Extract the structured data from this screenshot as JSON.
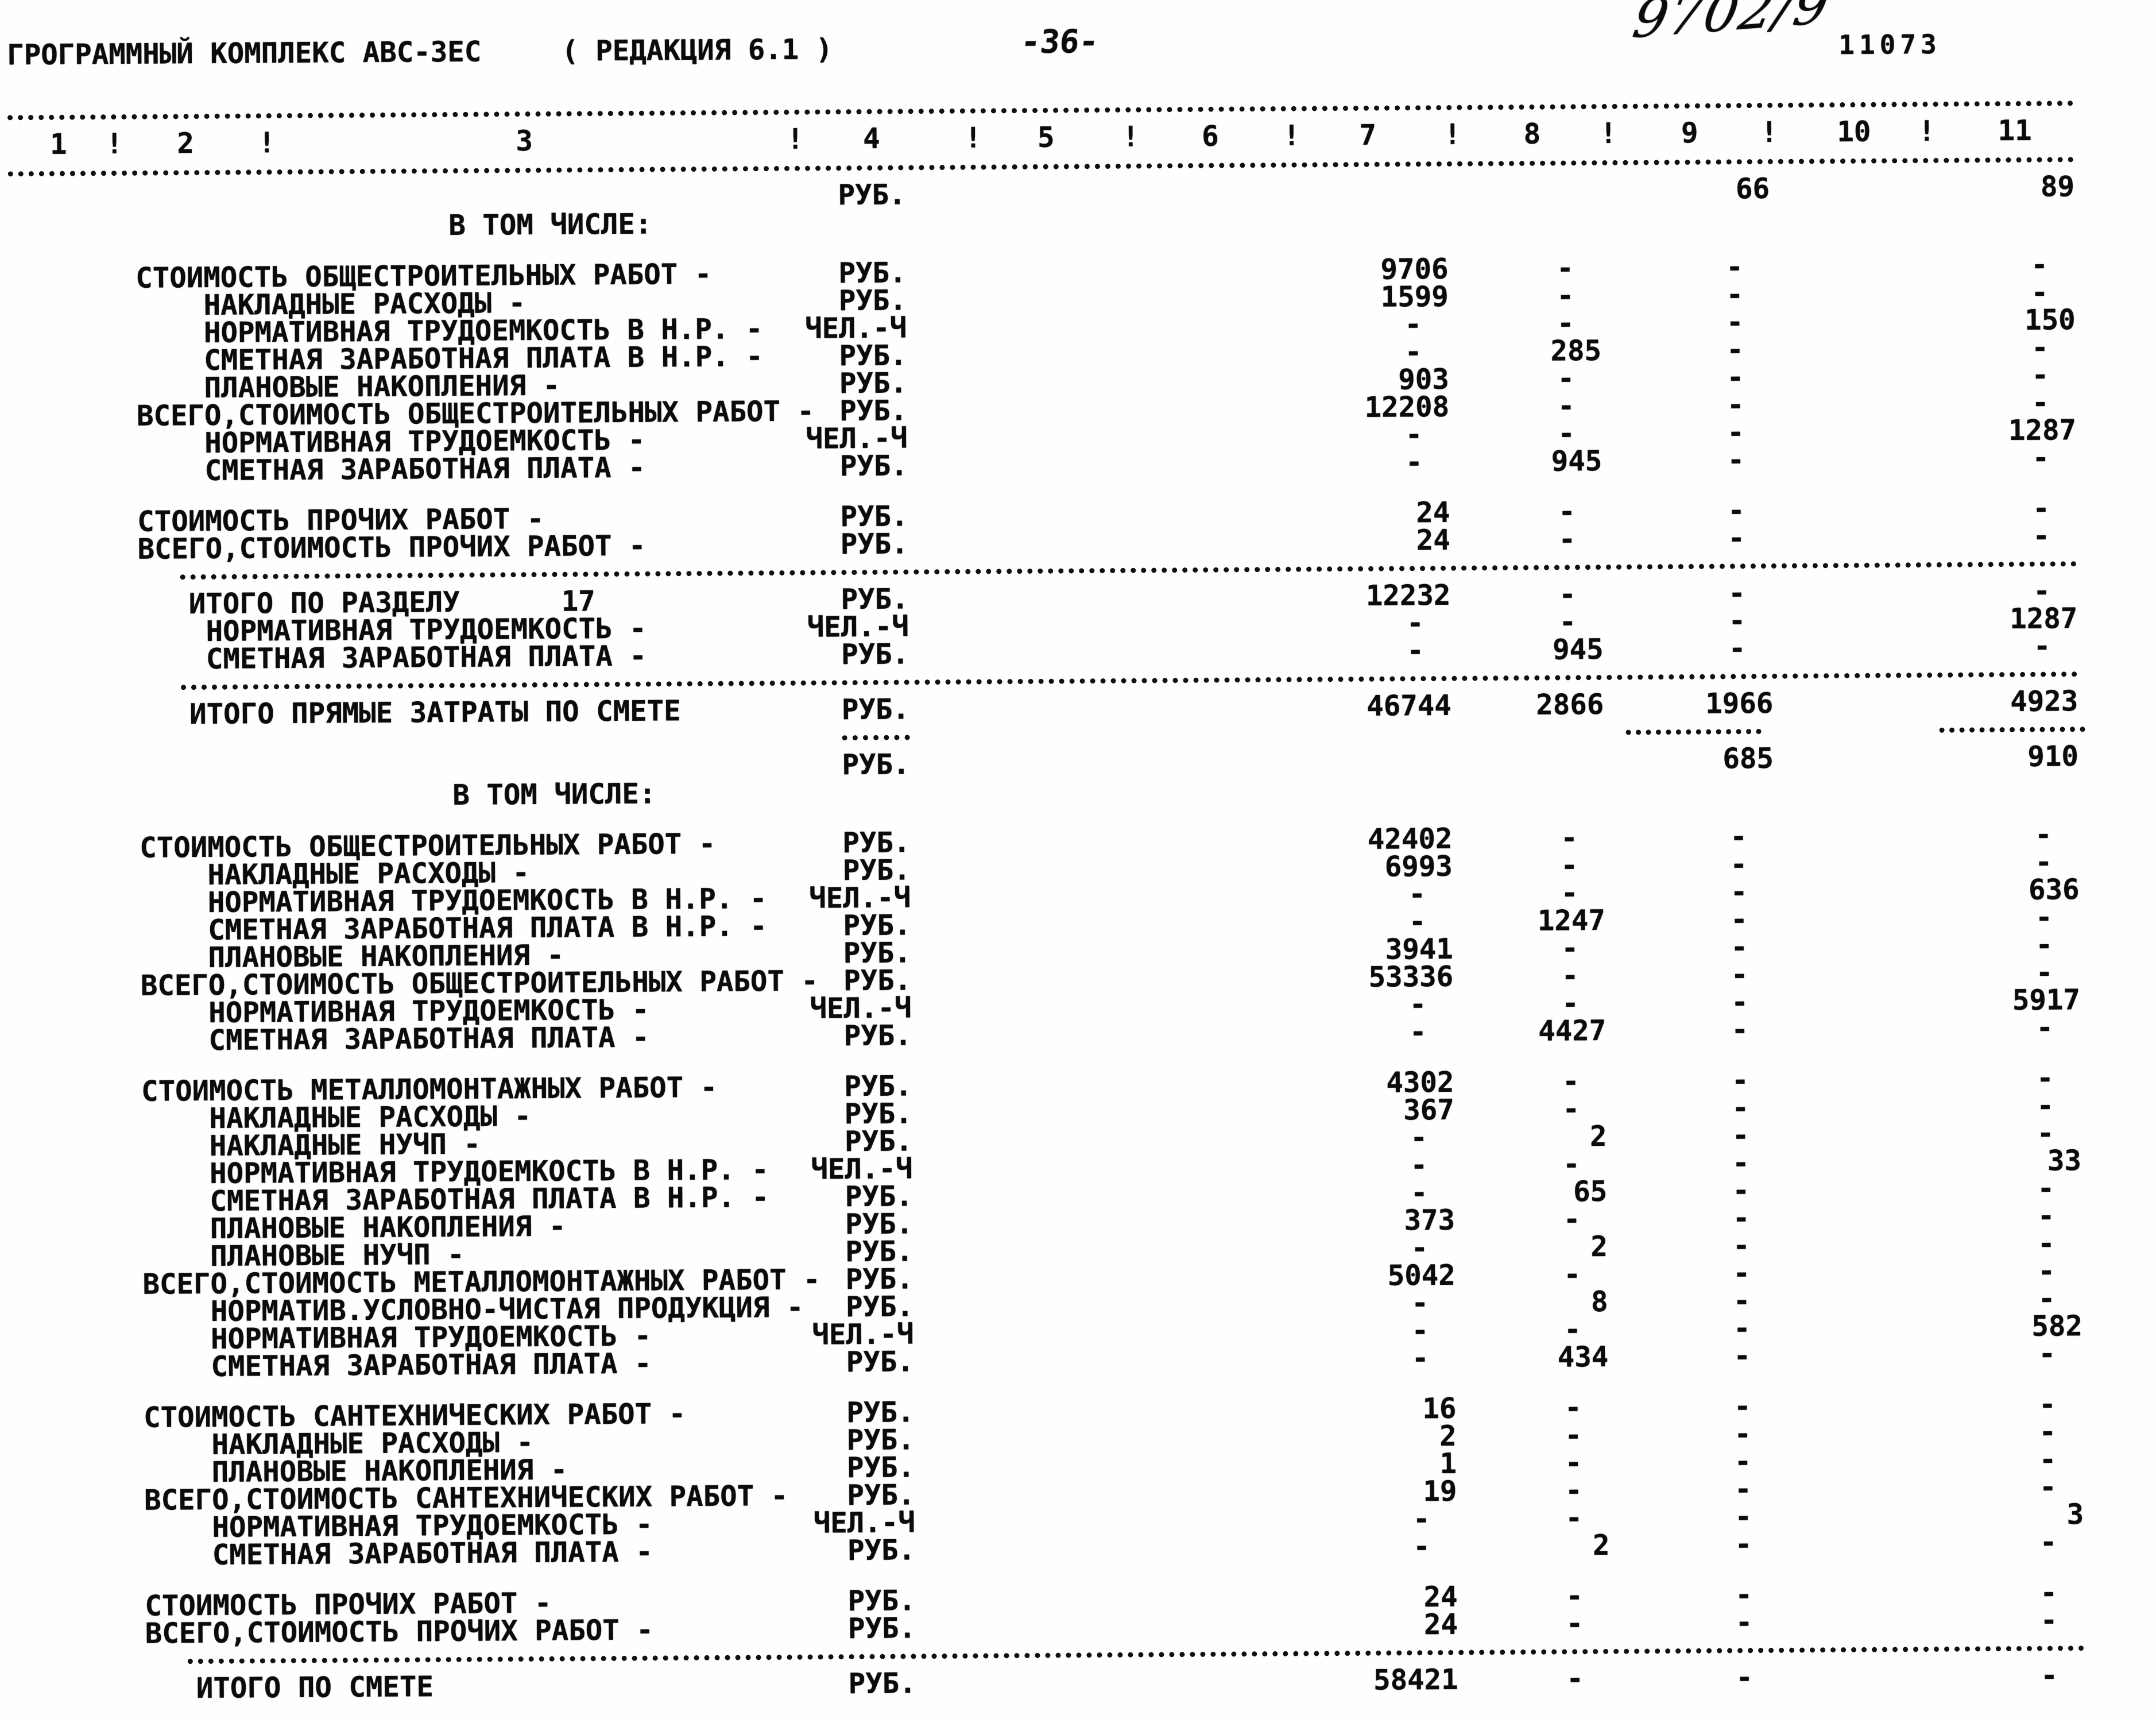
{
  "header": {
    "title": "ГРОГРАММНЫЙ КОМПЛЕКС АВС-3ЕС",
    "edition": "( РЕДАКЦИЯ 6.1 )",
    "page_number": "-36-",
    "handwritten_note": "9702/9",
    "stamp_number": "11073"
  },
  "table": {
    "column_numbers": [
      "1",
      "2",
      "3",
      "4",
      "5",
      "6",
      "7",
      "8",
      "9",
      "10",
      "11"
    ],
    "separator_char": "!",
    "units": {
      "rub": "РУБ.",
      "chel": "ЧЕЛ.-Ч"
    },
    "rows": [
      {
        "t": "v",
        "l": "",
        "ind": 0,
        "u": "РУБ.",
        "c7": "",
        "c8": "",
        "c9": "66",
        "c11": "89"
      },
      {
        "t": "s",
        "text": "В ТОМ ЧИСЛЕ:"
      },
      {
        "t": "b"
      },
      {
        "t": "v",
        "l": "СТОИМОСТЬ ОБЩЕСТРОИТЕЛЬНЫХ РАБОТ -",
        "ind": 0,
        "u": "РУБ.",
        "c7": "9706",
        "c8": "-",
        "c9": "-",
        "c11": "-"
      },
      {
        "t": "v",
        "l": "НАКЛАДНЫЕ РАСХОДЫ -",
        "ind": 1,
        "u": "РУБ.",
        "c7": "1599",
        "c8": "-",
        "c9": "-",
        "c11": "-"
      },
      {
        "t": "v",
        "l": "НОРМАТИВНАЯ ТРУДОЕМКОСТЬ В Н.Р. -",
        "ind": 1,
        "u": "ЧЕЛ.-Ч",
        "c7": "-",
        "c8": "-",
        "c9": "-",
        "c11": "150"
      },
      {
        "t": "v",
        "l": "СМЕТНАЯ ЗАРАБОТНАЯ ПЛАТА В Н.Р. -",
        "ind": 1,
        "u": "РУБ.",
        "c7": "-",
        "c8": "285",
        "c9": "-",
        "c11": "-"
      },
      {
        "t": "v",
        "l": "ПЛАНОВЫЕ НАКОПЛЕНИЯ -",
        "ind": 1,
        "u": "РУБ.",
        "c7": "903",
        "c8": "-",
        "c9": "-",
        "c11": "-"
      },
      {
        "t": "v",
        "l": "ВСЕГО,СТОИМОСТЬ ОБЩЕСТРОИТЕЛЬНЫХ РАБОТ -",
        "ind": 0,
        "u": "РУБ.",
        "c7": "12208",
        "c8": "-",
        "c9": "-",
        "c11": "-"
      },
      {
        "t": "v",
        "l": "НОРМАТИВНАЯ ТРУДОЕМКОСТЬ -",
        "ind": 1,
        "u": "ЧЕЛ.-Ч",
        "c7": "-",
        "c8": "-",
        "c9": "-",
        "c11": "1287"
      },
      {
        "t": "v",
        "l": "СМЕТНАЯ ЗАРАБОТНАЯ ПЛАТА -",
        "ind": 1,
        "u": "РУБ.",
        "c7": "-",
        "c8": "945",
        "c9": "-",
        "c11": "-"
      },
      {
        "t": "b"
      },
      {
        "t": "v",
        "l": "СТОИМОСТЬ ПРОЧИХ РАБОТ -",
        "ind": 0,
        "u": "РУБ.",
        "c7": "24",
        "c8": "-",
        "c9": "-",
        "c11": "-"
      },
      {
        "t": "v",
        "l": "ВСЕГО,СТОИМОСТЬ ПРОЧИХ РАБОТ -",
        "ind": 0,
        "u": "РУБ.",
        "c7": "24",
        "c8": "-",
        "c9": "-",
        "c11": "-"
      },
      {
        "t": "si"
      },
      {
        "t": "v",
        "l": "ИТОГО ПО РАЗДЕЛУ      17",
        "ind": 2,
        "u": "РУБ.",
        "c7": "12232",
        "c8": "-",
        "c9": "-",
        "c11": "-"
      },
      {
        "t": "v",
        "l": "НОРМАТИВНАЯ ТРУДОЕМКОСТЬ -",
        "ind": 1,
        "u": "ЧЕЛ.-Ч",
        "c7": "-",
        "c8": "-",
        "c9": "-",
        "c11": "1287"
      },
      {
        "t": "v",
        "l": "СМЕТНАЯ ЗАРАБОТНАЯ ПЛАТА -",
        "ind": 1,
        "u": "РУБ.",
        "c7": "-",
        "c8": "945",
        "c9": "-",
        "c11": "-"
      },
      {
        "t": "si"
      },
      {
        "t": "v",
        "l": "ИТОГО ПРЯМЫЕ ЗАТРАТЫ ПО СМЕТЕ",
        "ind": 2,
        "u": "РУБ.",
        "c7": "46744",
        "c8": "2866",
        "c9": "1966",
        "c11": "4923"
      },
      {
        "t": "sc"
      },
      {
        "t": "v",
        "l": "",
        "ind": 0,
        "u": "РУБ.",
        "c7": "",
        "c8": "",
        "c9": "685",
        "c11": "910"
      },
      {
        "t": "s",
        "text": "В ТОМ ЧИСЛЕ:"
      },
      {
        "t": "b"
      },
      {
        "t": "v",
        "l": "СТОИМОСТЬ ОБЩЕСТРОИТЕЛЬНЫХ РАБОТ -",
        "ind": 0,
        "u": "РУБ.",
        "c7": "42402",
        "c8": "-",
        "c9": "-",
        "c11": "-"
      },
      {
        "t": "v",
        "l": "НАКЛАДНЫЕ РАСХОДЫ -",
        "ind": 1,
        "u": "РУБ.",
        "c7": "6993",
        "c8": "-",
        "c9": "-",
        "c11": "-"
      },
      {
        "t": "v",
        "l": "НОРМАТИВНАЯ ТРУДОЕМКОСТЬ В Н.Р. -",
        "ind": 1,
        "u": "ЧЕЛ.-Ч",
        "c7": "-",
        "c8": "-",
        "c9": "-",
        "c11": "636"
      },
      {
        "t": "v",
        "l": "СМЕТНАЯ ЗАРАБОТНАЯ ПЛАТА В Н.Р. -",
        "ind": 1,
        "u": "РУБ.",
        "c7": "-",
        "c8": "1247",
        "c9": "-",
        "c11": "-"
      },
      {
        "t": "v",
        "l": "ПЛАНОВЫЕ НАКОПЛЕНИЯ -",
        "ind": 1,
        "u": "РУБ.",
        "c7": "3941",
        "c8": "-",
        "c9": "-",
        "c11": "-"
      },
      {
        "t": "v",
        "l": "ВСЕГО,СТОИМОСТЬ ОБЩЕСТРОИТЕЛЬНЫХ РАБОТ -",
        "ind": 0,
        "u": "РУБ.",
        "c7": "53336",
        "c8": "-",
        "c9": "-",
        "c11": "-"
      },
      {
        "t": "v",
        "l": "НОРМАТИВНАЯ ТРУДОЕМКОСТЬ -",
        "ind": 1,
        "u": "ЧЕЛ.-Ч",
        "c7": "-",
        "c8": "-",
        "c9": "-",
        "c11": "5917"
      },
      {
        "t": "v",
        "l": "СМЕТНАЯ ЗАРАБОТНАЯ ПЛАТА -",
        "ind": 1,
        "u": "РУБ.",
        "c7": "-",
        "c8": "4427",
        "c9": "-",
        "c11": "-"
      },
      {
        "t": "b"
      },
      {
        "t": "v",
        "l": "СТОИМОСТЬ МЕТАЛЛОМОНТАЖНЫХ РАБОТ -",
        "ind": 0,
        "u": "РУБ.",
        "c7": "4302",
        "c8": "-",
        "c9": "-",
        "c11": "-"
      },
      {
        "t": "v",
        "l": "НАКЛАДНЫЕ РАСХОДЫ -",
        "ind": 1,
        "u": "РУБ.",
        "c7": "367",
        "c8": "-",
        "c9": "-",
        "c11": "-"
      },
      {
        "t": "v",
        "l": "НАКЛАДНЫЕ НУЧП -",
        "ind": 1,
        "u": "РУБ.",
        "c7": "-",
        "c8": "2",
        "c9": "-",
        "c11": "-"
      },
      {
        "t": "v",
        "l": "НОРМАТИВНАЯ ТРУДОЕМКОСТЬ В Н.Р. -",
        "ind": 1,
        "u": "ЧЕЛ.-Ч",
        "c7": "-",
        "c8": "-",
        "c9": "-",
        "c11": "33"
      },
      {
        "t": "v",
        "l": "СМЕТНАЯ ЗАРАБОТНАЯ ПЛАТА В Н.Р. -",
        "ind": 1,
        "u": "РУБ.",
        "c7": "-",
        "c8": "65",
        "c9": "-",
        "c11": "-"
      },
      {
        "t": "v",
        "l": "ПЛАНОВЫЕ НАКОПЛЕНИЯ -",
        "ind": 1,
        "u": "РУБ.",
        "c7": "373",
        "c8": "-",
        "c9": "-",
        "c11": "-"
      },
      {
        "t": "v",
        "l": "ПЛАНОВЫЕ НУЧП -",
        "ind": 1,
        "u": "РУБ.",
        "c7": "-",
        "c8": "2",
        "c9": "-",
        "c11": "-"
      },
      {
        "t": "v",
        "l": "ВСЕГО,СТОИМОСТЬ МЕТАЛЛОМОНТАЖНЫХ РАБОТ -",
        "ind": 0,
        "u": "РУБ.",
        "c7": "5042",
        "c8": "-",
        "c9": "-",
        "c11": "-"
      },
      {
        "t": "v",
        "l": "НОРМАТИВ.УСЛОВНО-ЧИСТАЯ ПРОДУКЦИЯ -",
        "ind": 1,
        "u": "РУБ.",
        "c7": "-",
        "c8": "8",
        "c9": "-",
        "c11": "-"
      },
      {
        "t": "v",
        "l": "НОРМАТИВНАЯ ТРУДОЕМКОСТЬ -",
        "ind": 1,
        "u": "ЧЕЛ.-Ч",
        "c7": "-",
        "c8": "-",
        "c9": "-",
        "c11": "582"
      },
      {
        "t": "v",
        "l": "СМЕТНАЯ ЗАРАБОТНАЯ ПЛАТА -",
        "ind": 1,
        "u": "РУБ.",
        "c7": "-",
        "c8": "434",
        "c9": "-",
        "c11": "-"
      },
      {
        "t": "b"
      },
      {
        "t": "v",
        "l": "СТОИМОСТЬ САНТЕХНИЧЕСКИХ РАБОТ -",
        "ind": 0,
        "u": "РУБ.",
        "c7": "16",
        "c8": "-",
        "c9": "-",
        "c11": "-"
      },
      {
        "t": "v",
        "l": "НАКЛАДНЫЕ РАСХОДЫ -",
        "ind": 1,
        "u": "РУБ.",
        "c7": "2",
        "c8": "-",
        "c9": "-",
        "c11": "-"
      },
      {
        "t": "v",
        "l": "ПЛАНОВЫЕ НАКОПЛЕНИЯ -",
        "ind": 1,
        "u": "РУБ.",
        "c7": "1",
        "c8": "-",
        "c9": "-",
        "c11": "-"
      },
      {
        "t": "v",
        "l": "ВСЕГО,СТОИМОСТЬ САНТЕХНИЧЕСКИХ РАБОТ -",
        "ind": 0,
        "u": "РУБ.",
        "c7": "19",
        "c8": "-",
        "c9": "-",
        "c11": "-"
      },
      {
        "t": "v",
        "l": "НОРМАТИВНАЯ ТРУДОЕМКОСТЬ -",
        "ind": 1,
        "u": "ЧЕЛ.-Ч",
        "c7": "-",
        "c8": "-",
        "c9": "-",
        "c11": "3"
      },
      {
        "t": "v",
        "l": "СМЕТНАЯ ЗАРАБОТНАЯ ПЛАТА -",
        "ind": 1,
        "u": "РУБ.",
        "c7": "-",
        "c8": "2",
        "c9": "-",
        "c11": "-"
      },
      {
        "t": "b"
      },
      {
        "t": "v",
        "l": "СТОИМОСТЬ ПРОЧИХ РАБОТ -",
        "ind": 0,
        "u": "РУБ.",
        "c7": "24",
        "c8": "-",
        "c9": "-",
        "c11": "-"
      },
      {
        "t": "v",
        "l": "ВСЕГО,СТОИМОСТЬ ПРОЧИХ РАБОТ -",
        "ind": 0,
        "u": "РУБ.",
        "c7": "24",
        "c8": "-",
        "c9": "-",
        "c11": "-"
      },
      {
        "t": "si"
      },
      {
        "t": "v",
        "l": "ИТОГО ПО СМЕТЕ",
        "ind": 2,
        "u": "РУБ.",
        "c7": "58421",
        "c8": "-",
        "c9": "-",
        "c11": "-"
      }
    ]
  }
}
